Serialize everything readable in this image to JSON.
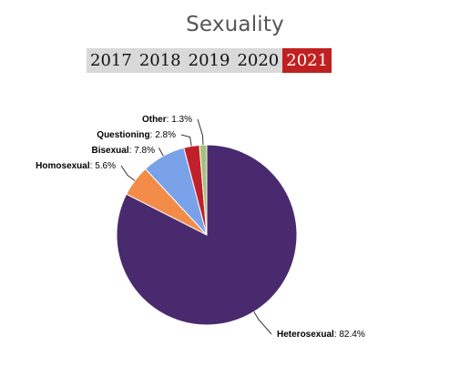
{
  "title": "Sexuality",
  "year_tabs": [
    {
      "label": "2017",
      "active": false
    },
    {
      "label": "2018",
      "active": false
    },
    {
      "label": "2019",
      "active": false
    },
    {
      "label": "2020",
      "active": false
    },
    {
      "label": "2021",
      "active": true
    }
  ],
  "chart_data": {
    "type": "pie",
    "title": "",
    "slices": [
      {
        "label": "Heterosexual",
        "value": 82.4,
        "display": "82.4%",
        "color": "#4a2a6e"
      },
      {
        "label": "Homosexual",
        "value": 5.6,
        "display": "5.6%",
        "color": "#f28c48"
      },
      {
        "label": "Bisexual",
        "value": 7.8,
        "display": "7.8%",
        "color": "#7aa2e8"
      },
      {
        "label": "Questioning",
        "value": 2.8,
        "display": "2.8%",
        "color": "#c0202a"
      },
      {
        "label": "Other",
        "value": 1.3,
        "display": "1.3%",
        "color": "#a6c27a"
      }
    ],
    "legend": "none"
  }
}
